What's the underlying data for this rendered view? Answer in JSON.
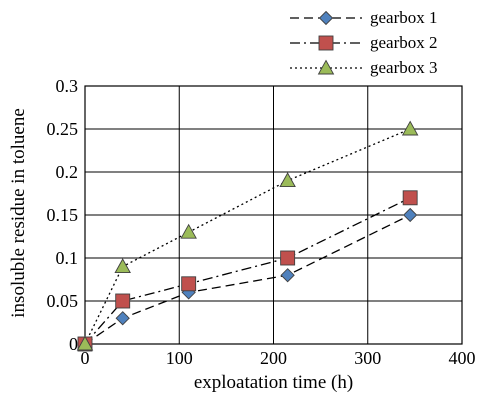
{
  "chart_data": {
    "type": "line",
    "title": "",
    "xlabel": "exploatation time (h)",
    "ylabel": "insoluble residue in toluene",
    "xlim": [
      0,
      400
    ],
    "ylim": [
      0,
      0.3
    ],
    "x_ticks": [
      "0",
      "100",
      "200",
      "300",
      "400"
    ],
    "y_ticks": [
      "0",
      "0.05",
      "0.1",
      "0.15",
      "0.2",
      "0.25",
      "0.3"
    ],
    "grid": true,
    "legend_position": "top-right",
    "series": [
      {
        "name": "gearbox 1",
        "marker": "diamond",
        "line_style": "dashed",
        "color": "#4f81bd",
        "x": [
          0,
          40,
          110,
          215,
          345
        ],
        "values": [
          0,
          0.03,
          0.06,
          0.08,
          0.15
        ]
      },
      {
        "name": "gearbox 2",
        "marker": "square",
        "line_style": "dash-dot",
        "color": "#c0504d",
        "x": [
          0,
          40,
          110,
          215,
          345
        ],
        "values": [
          0,
          0.05,
          0.07,
          0.1,
          0.17
        ]
      },
      {
        "name": "gearbox 3",
        "marker": "triangle",
        "line_style": "dotted",
        "color": "#9bbb59",
        "x": [
          0,
          40,
          110,
          215,
          345
        ],
        "values": [
          0,
          0.09,
          0.13,
          0.19,
          0.25
        ]
      }
    ]
  }
}
